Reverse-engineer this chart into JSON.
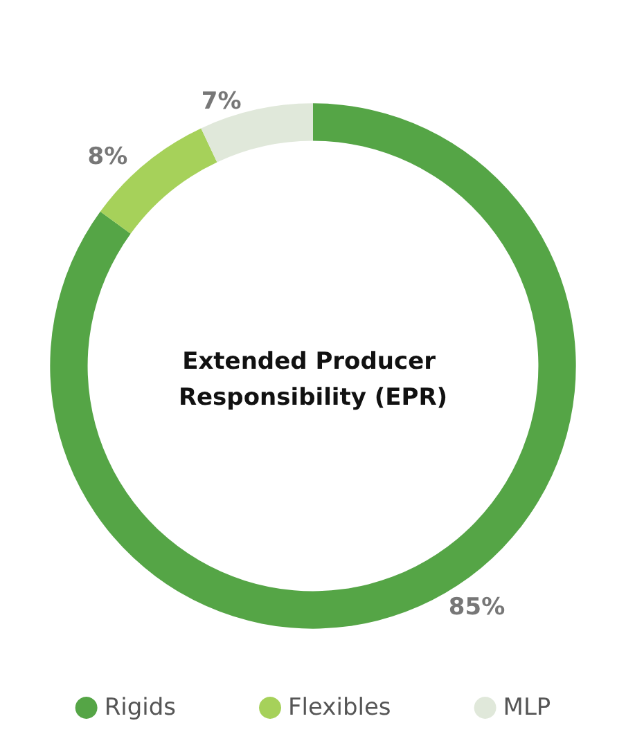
{
  "chart_data": {
    "type": "donut",
    "title": "Extended Producer Responsibility (EPR)",
    "categories": [
      "Rigids",
      "Flexibles",
      "MLP"
    ],
    "values": [
      85,
      8,
      7
    ],
    "colors": [
      "#55a546",
      "#a6d15a",
      "#e0e8da"
    ],
    "value_labels": [
      "85%",
      "8%",
      "7%"
    ],
    "legend": "bottom"
  }
}
